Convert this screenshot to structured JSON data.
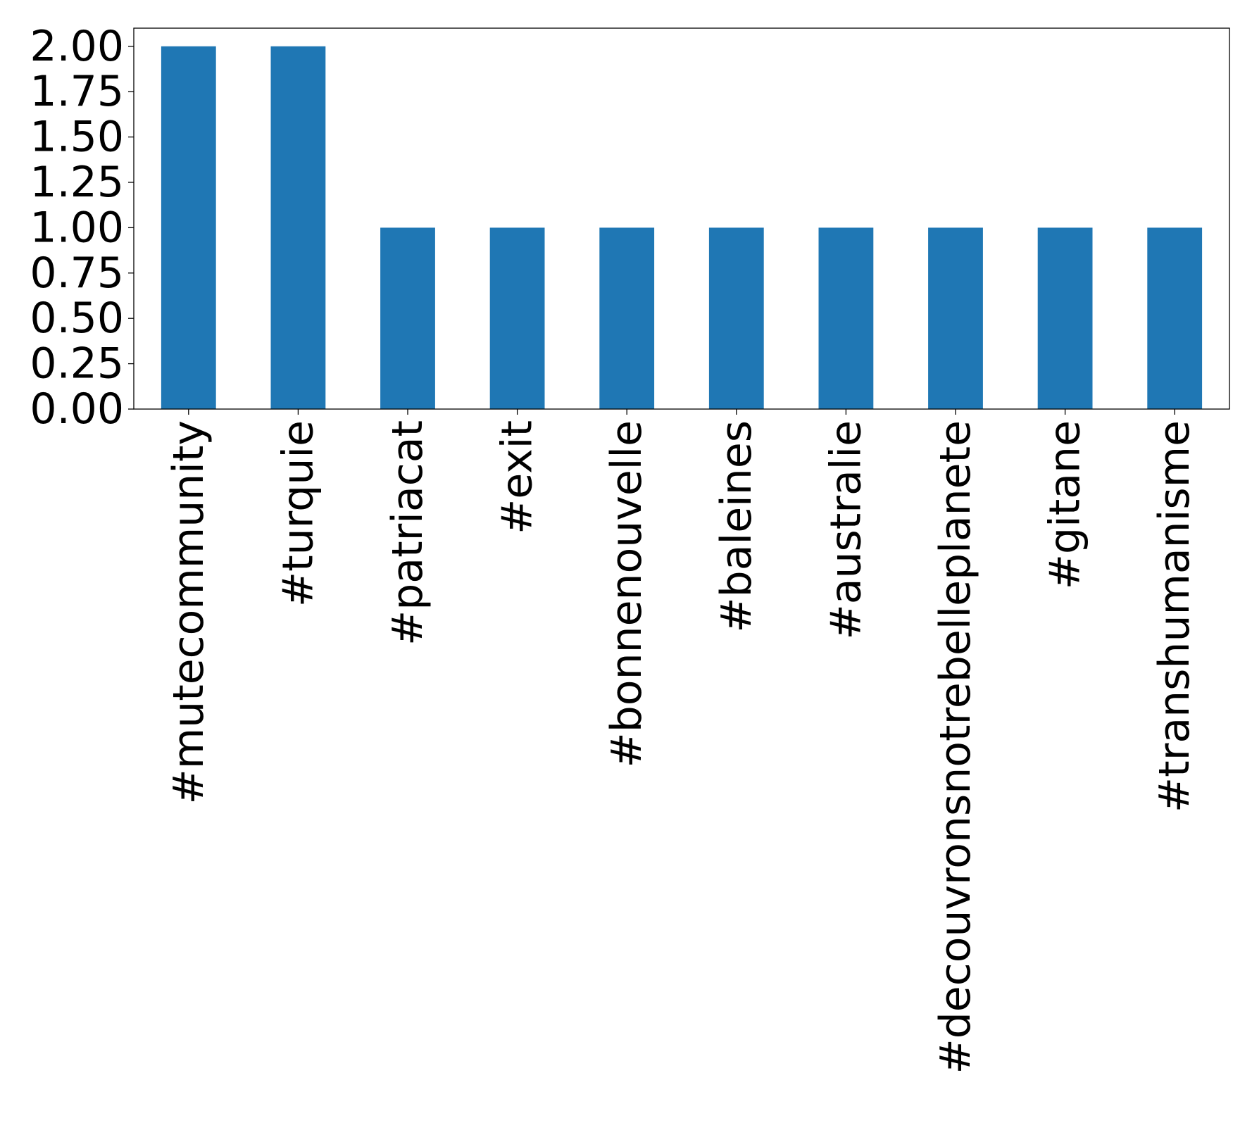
{
  "chart_data": {
    "type": "bar",
    "categories": [
      "#mutecommunity",
      "#turquie",
      "#patriacat",
      "#exit",
      "#bonnenouvelle",
      "#baleines",
      "#australie",
      "#decouvronsnotrebelleplanete",
      "#gitane",
      "#transhumanisme"
    ],
    "values": [
      2,
      2,
      1,
      1,
      1,
      1,
      1,
      1,
      1,
      1
    ],
    "y_ticks": [
      "0.00",
      "0.25",
      "0.50",
      "0.75",
      "1.00",
      "1.25",
      "1.50",
      "1.75",
      "2.00"
    ],
    "ylim": [
      0,
      2.1
    ],
    "bar_color": "#1f77b4",
    "grid": false,
    "legend": false,
    "xlabel": "",
    "ylabel": "",
    "title": ""
  }
}
